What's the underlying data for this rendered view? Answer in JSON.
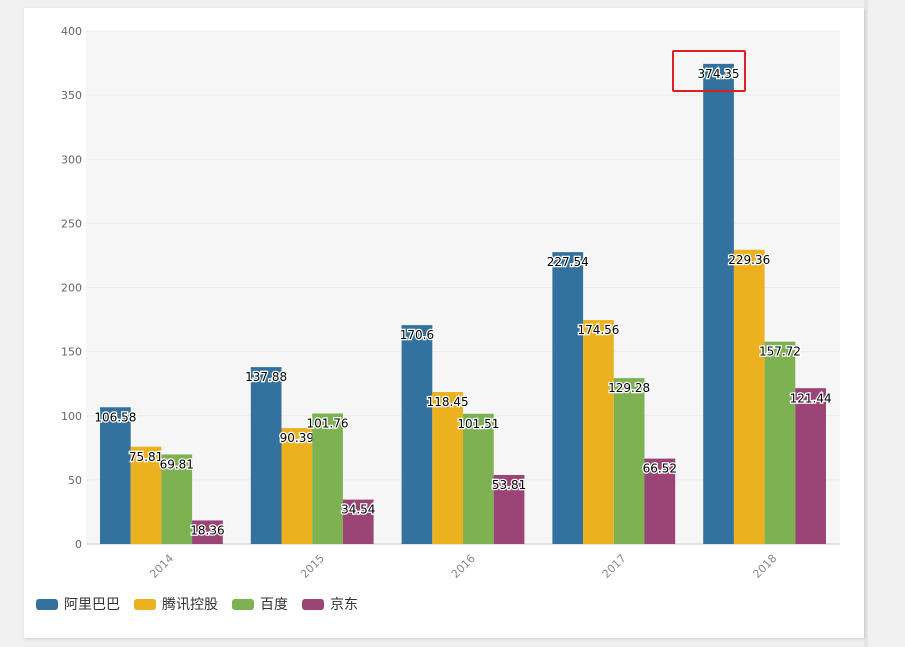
{
  "chart_data": {
    "type": "bar",
    "categories": [
      "2014",
      "2015",
      "2016",
      "2017",
      "2018"
    ],
    "series": [
      {
        "name": "阿里巴巴",
        "color": "#33729e",
        "values": [
          106.58,
          137.88,
          170.6,
          227.54,
          374.35
        ]
      },
      {
        "name": "腾讯控股",
        "color": "#ebb11f",
        "values": [
          75.81,
          90.39,
          118.45,
          174.56,
          229.36
        ]
      },
      {
        "name": "百度",
        "color": "#7db152",
        "values": [
          69.81,
          101.76,
          101.51,
          129.28,
          157.72
        ]
      },
      {
        "name": "京东",
        "color": "#9b4476",
        "values": [
          18.36,
          34.54,
          53.81,
          66.52,
          121.44
        ]
      }
    ],
    "yticks": [
      "0",
      "50",
      "100",
      "150",
      "200",
      "250",
      "300",
      "350",
      "400"
    ],
    "ylim": [
      0,
      400
    ],
    "grid": true,
    "legend_position": "bottom-left",
    "highlight": {
      "series": "阿里巴巴",
      "category": "2018",
      "value": 374.35
    }
  }
}
